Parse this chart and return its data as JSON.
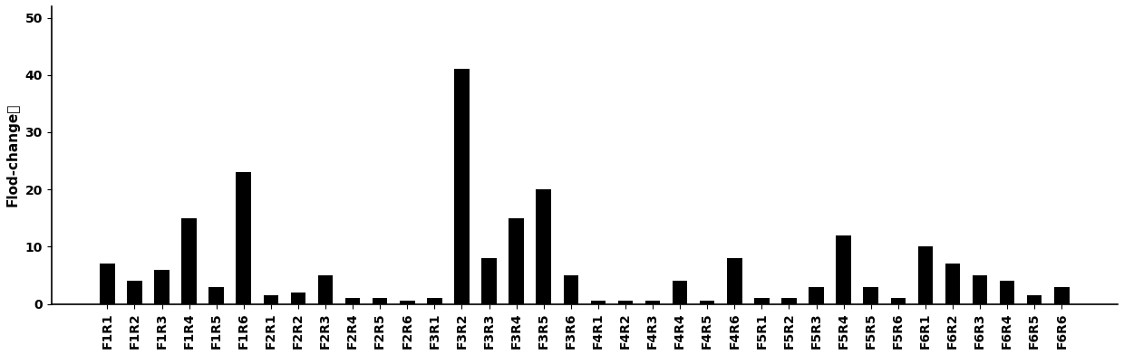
{
  "categories": [
    "F1R1",
    "F1R2",
    "F1R3",
    "F1R4",
    "F1R5",
    "F1R6",
    "F2R1",
    "F2R2",
    "F2R3",
    "F2R4",
    "F2R5",
    "F2R6",
    "F3R1",
    "F3R2",
    "F3R3",
    "F3R4",
    "F3R5",
    "F3R6",
    "F4R1",
    "F4R2",
    "F4R3",
    "F4R4",
    "F4R5",
    "F4R6",
    "F5R1",
    "F5R2",
    "F5R3",
    "F5R4",
    "F5R5",
    "F5R6",
    "F6R1",
    "F6R2",
    "F6R3",
    "F6R4",
    "F6R5",
    "F6R6"
  ],
  "values": [
    7,
    4,
    6,
    15,
    3,
    23,
    1.5,
    2,
    5,
    1,
    1,
    0.5,
    1,
    41,
    8,
    15,
    20,
    5,
    0.5,
    0.5,
    0.5,
    4,
    0.5,
    8,
    1,
    1,
    3,
    12,
    3,
    1,
    10,
    7,
    5,
    4,
    1.5,
    3
  ],
  "bar_color": "#000000",
  "ylabel": "Flod-change值",
  "yticks": [
    0,
    10,
    20,
    30,
    40,
    50
  ],
  "ylim": [
    0,
    52
  ],
  "background_color": "#ffffff",
  "tick_fontsize": 10,
  "ylabel_fontsize": 11,
  "bar_width": 0.55
}
